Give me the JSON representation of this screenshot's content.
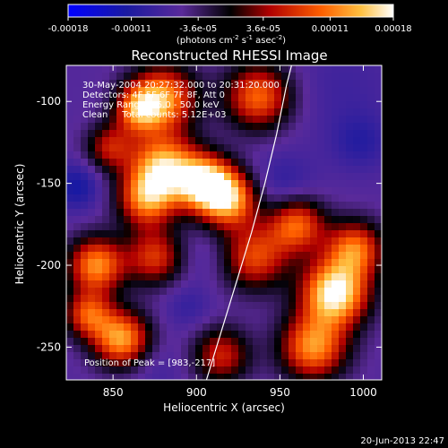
{
  "chart_data": {
    "type": "heatmap",
    "title": "Reconstructed RHESSI Image",
    "xlabel": "Heliocentric X (arcsec)",
    "ylabel": "Heliocentric Y (arcsec)",
    "xlim": [
      822,
      1011
    ],
    "ylim": [
      -270,
      -78
    ],
    "x_ticks": [
      "850",
      "900",
      "950",
      "1000"
    ],
    "y_ticks": [
      "-100",
      "-150",
      "-200",
      "-250"
    ],
    "x_tick_values": [
      850,
      900,
      950,
      1000
    ],
    "y_tick_values": [
      -100,
      -150,
      -200,
      -250
    ],
    "colorbar": {
      "min": -0.00018,
      "max": 0.00018,
      "tick_labels": [
        "-0.00018",
        "-0.00011",
        "-3.6e-05",
        "3.6e-05",
        "0.00011",
        "0.00018"
      ],
      "tick_values": [
        -0.00018,
        -0.00011,
        -3.6e-05,
        3.6e-05,
        0.00011,
        0.00018
      ],
      "unit_label": "(photons cm",
      "unit_sup1": "-2",
      "unit_mid": " s",
      "unit_sup2": "-1",
      "unit_mid2": " asec",
      "unit_sup3": "-2",
      "unit_end": ")"
    },
    "annotations": {
      "line1": "30-May-2004 20:27:32.000 to 20:31:20.000",
      "line2": "Detectors: 4F 5F 6F 7F 8F, Att 0",
      "line3": "Energy Range: 25.0 - 50.0 keV",
      "line4": "Clean     Total counts: 5.12E+03",
      "peak": "Position of Peak = [983,-217]"
    },
    "peak": [
      983,
      -217
    ],
    "limb_curve": [
      [
        906,
        -270
      ],
      [
        915,
        -240
      ],
      [
        924,
        -210
      ],
      [
        933,
        -180
      ],
      [
        941,
        -150
      ],
      [
        948,
        -120
      ],
      [
        954,
        -90
      ],
      [
        957,
        -78
      ]
    ],
    "blobs": [
      {
        "x": 880,
        "y": -98,
        "v": 0.00012,
        "r": 14
      },
      {
        "x": 865,
        "y": -105,
        "v": 8e-05,
        "r": 10
      },
      {
        "x": 937,
        "y": -97,
        "v": 0.0001,
        "r": 14
      },
      {
        "x": 988,
        "y": -92,
        "v": -8e-05,
        "r": 22
      },
      {
        "x": 998,
        "y": -125,
        "v": -0.0001,
        "r": 12
      },
      {
        "x": 848,
        "y": -128,
        "v": 5e-05,
        "r": 10
      },
      {
        "x": 880,
        "y": -140,
        "v": 0.00014,
        "r": 14
      },
      {
        "x": 905,
        "y": -150,
        "v": 0.00016,
        "r": 12
      },
      {
        "x": 870,
        "y": -160,
        "v": 0.0001,
        "r": 12
      },
      {
        "x": 920,
        "y": -160,
        "v": 0.00012,
        "r": 12
      },
      {
        "x": 828,
        "y": -152,
        "v": -0.00012,
        "r": 10
      },
      {
        "x": 850,
        "y": -172,
        "v": -6e-05,
        "r": 14
      },
      {
        "x": 952,
        "y": -152,
        "v": -0.0001,
        "r": 14
      },
      {
        "x": 960,
        "y": -175,
        "v": 0.0001,
        "r": 12
      },
      {
        "x": 935,
        "y": -195,
        "v": 8e-05,
        "r": 14
      },
      {
        "x": 875,
        "y": -195,
        "v": 7e-05,
        "r": 12
      },
      {
        "x": 840,
        "y": -200,
        "v": 0.00012,
        "r": 12
      },
      {
        "x": 905,
        "y": -195,
        "v": -8e-05,
        "r": 10
      },
      {
        "x": 895,
        "y": -225,
        "v": -9e-05,
        "r": 10
      },
      {
        "x": 855,
        "y": -245,
        "v": 0.00013,
        "r": 12
      },
      {
        "x": 835,
        "y": -230,
        "v": 8e-05,
        "r": 10
      },
      {
        "x": 983,
        "y": -217,
        "v": 0.00018,
        "r": 14
      },
      {
        "x": 970,
        "y": -250,
        "v": 0.00012,
        "r": 14
      },
      {
        "x": 995,
        "y": -190,
        "v": 0.0001,
        "r": 12
      },
      {
        "x": 940,
        "y": -235,
        "v": -6e-05,
        "r": 14
      },
      {
        "x": 915,
        "y": -255,
        "v": 6e-05,
        "r": 12
      },
      {
        "x": 875,
        "y": -262,
        "v": -8e-05,
        "r": 12
      },
      {
        "x": 1005,
        "y": -258,
        "v": -6e-05,
        "r": 10
      }
    ]
  },
  "footer": {
    "timestamp": "20-Jun-2013 22:47"
  }
}
